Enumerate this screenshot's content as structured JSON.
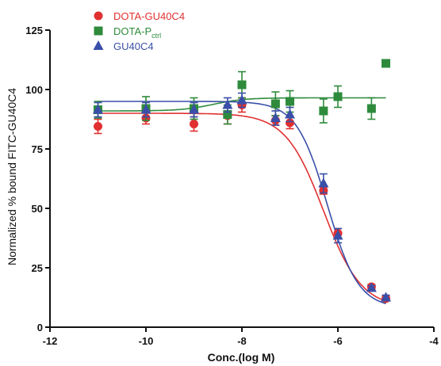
{
  "chart_data": {
    "type": "scatter",
    "xlabel": "Conc.(log M)",
    "ylabel": "Normalized % bound FITC-GU40C4",
    "xlim": [
      -12,
      -4
    ],
    "ylim": [
      0,
      125
    ],
    "xticks": [
      -12,
      -10,
      -8,
      -6,
      -4
    ],
    "yticks": [
      0,
      25,
      50,
      75,
      100,
      125
    ],
    "grid": false,
    "legend_position": "top-left",
    "series": [
      {
        "name": "DOTA-GU40C4",
        "name_main": "DOTA-GU40C4",
        "name_sub": "",
        "color": "#e03030",
        "marker": "circle",
        "x": [
          -11,
          -10,
          -9,
          -8.3,
          -8,
          -7.3,
          -7,
          -6.3,
          -6,
          -5.3,
          -5
        ],
        "y": [
          84.5,
          88,
          85.5,
          89,
          93.5,
          87,
          86,
          57.5,
          39.5,
          17,
          12
        ],
        "err": [
          3,
          2.5,
          3,
          3.5,
          3,
          2,
          2.5,
          1.5,
          2,
          1,
          1
        ],
        "fit": {
          "top": 90,
          "bottom": 8,
          "logEC50": -6.3,
          "hill": -1.1
        }
      },
      {
        "name": "DOTA-P ctrl",
        "name_main": "DOTA-P",
        "name_sub": "ctrl",
        "color": "#2e8b3c",
        "marker": "square",
        "x": [
          -11,
          -10,
          -9,
          -8.3,
          -8,
          -7.3,
          -7,
          -6.3,
          -6,
          -5.3,
          -5
        ],
        "y": [
          91.5,
          92,
          92,
          89.5,
          102,
          94,
          95,
          91,
          97,
          92,
          111
        ],
        "err": [
          3.5,
          5,
          4.5,
          4,
          5.5,
          5,
          4.5,
          5,
          4.5,
          4.5,
          0
        ],
        "fit": {
          "type": "sigmoid-rise",
          "start": 91,
          "end": 96.5,
          "mid": -8.6,
          "slope": 1.5
        }
      },
      {
        "name": "GU40C4",
        "name_main": "GU40C4",
        "name_sub": "",
        "color": "#3a4fa8",
        "marker": "triangle",
        "x": [
          -11,
          -10,
          -9,
          -8.3,
          -8,
          -7.3,
          -7,
          -6.3,
          -6,
          -5.3,
          -5
        ],
        "y": [
          91.5,
          91.5,
          91.5,
          93.5,
          95.5,
          88,
          89.5,
          60.5,
          38.5,
          16.5,
          12.5
        ],
        "err": [
          3,
          3,
          3,
          3,
          3,
          3,
          3,
          4,
          3,
          1,
          1
        ],
        "fit": {
          "top": 95,
          "bottom": 8,
          "logEC50": -6.22,
          "hill": -1.35
        }
      }
    ]
  }
}
